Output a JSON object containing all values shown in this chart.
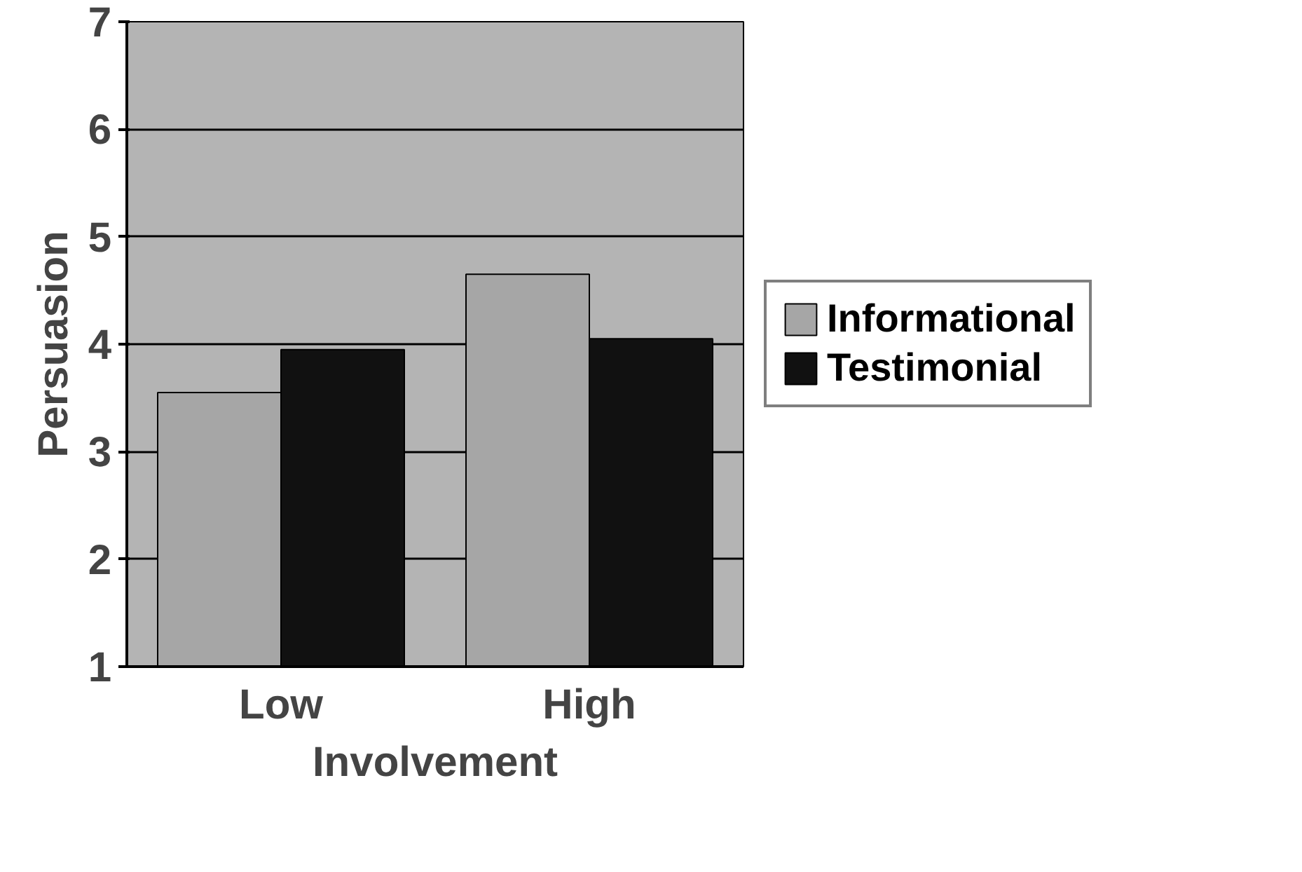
{
  "chart_data": {
    "type": "bar",
    "xlabel": "Involvement",
    "ylabel": "Persuasion",
    "categories": [
      "Low",
      "High"
    ],
    "series": [
      {
        "name": "Informational",
        "color": "#a6a6a6",
        "values": [
          3.55,
          4.65
        ]
      },
      {
        "name": "Testimonial",
        "color": "#111111",
        "values": [
          3.95,
          4.05
        ]
      }
    ],
    "ylim": [
      1,
      7
    ],
    "yticks": [
      1,
      2,
      3,
      4,
      5,
      6,
      7
    ],
    "grid": "y",
    "legend": "right"
  }
}
